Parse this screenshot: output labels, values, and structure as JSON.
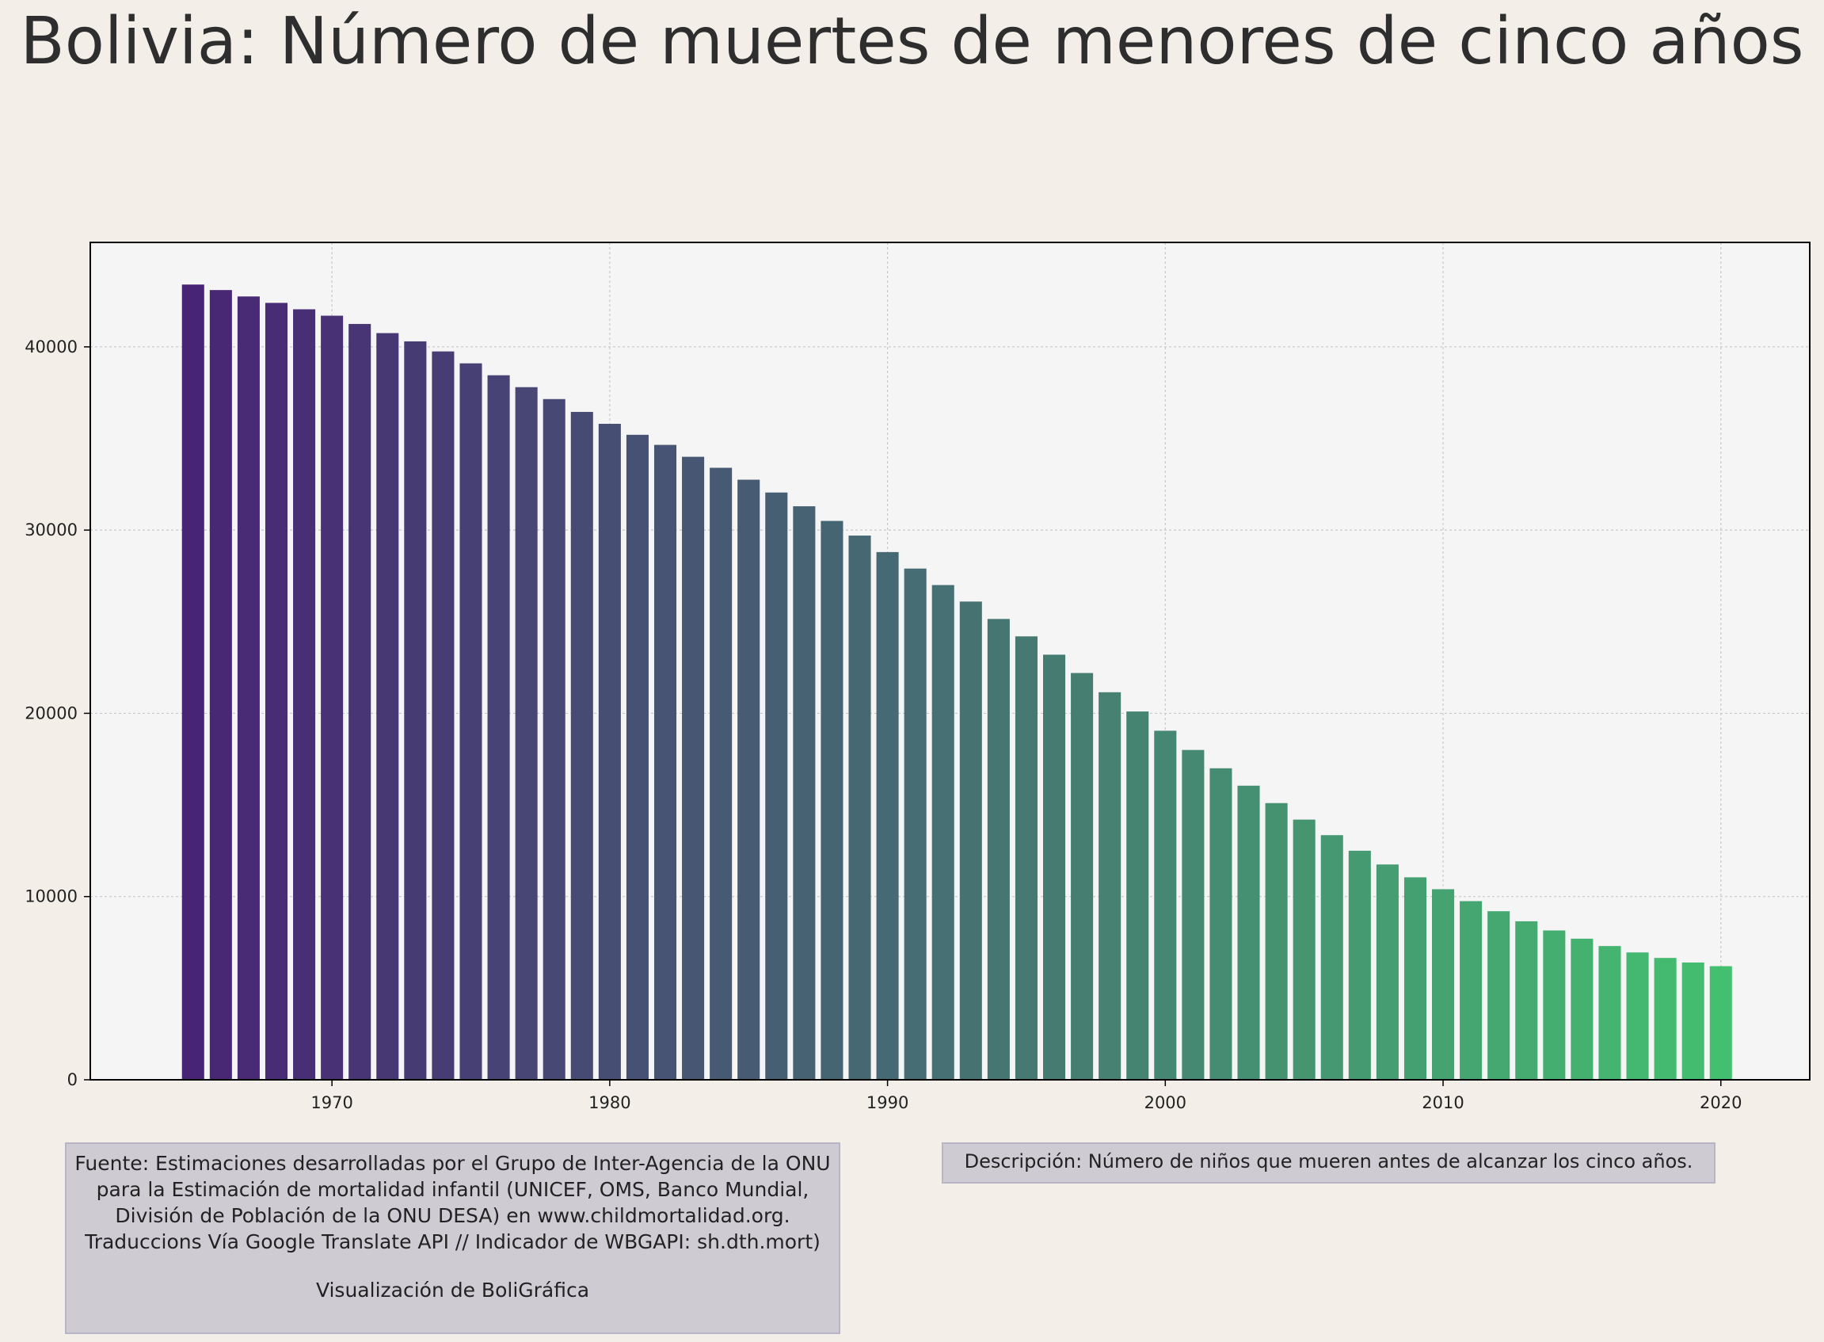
{
  "chart_data": {
    "type": "bar",
    "title": "Bolivia:  Número de muertes de menores de cinco años",
    "xlabel": "",
    "ylabel": "",
    "x": [
      1965,
      1966,
      1967,
      1968,
      1969,
      1970,
      1971,
      1972,
      1973,
      1974,
      1975,
      1976,
      1977,
      1978,
      1979,
      1980,
      1981,
      1982,
      1983,
      1984,
      1985,
      1986,
      1987,
      1988,
      1989,
      1990,
      1991,
      1992,
      1993,
      1994,
      1995,
      1996,
      1997,
      1998,
      1999,
      2000,
      2001,
      2002,
      2003,
      2004,
      2005,
      2006,
      2007,
      2008,
      2009,
      2010,
      2011,
      2012,
      2013,
      2014,
      2015,
      2016,
      2017,
      2018,
      2019,
      2020
    ],
    "values": [
      43400,
      43100,
      42750,
      42400,
      42050,
      41700,
      41250,
      40750,
      40300,
      39750,
      39100,
      38450,
      37800,
      37150,
      36450,
      35800,
      35200,
      34650,
      34000,
      33400,
      32750,
      32050,
      31300,
      30500,
      29700,
      28800,
      27900,
      27000,
      26100,
      25150,
      24200,
      23200,
      22200,
      21150,
      20100,
      19050,
      18000,
      17000,
      16050,
      15100,
      14200,
      13350,
      12500,
      11750,
      11050,
      10400,
      9750,
      9200,
      8650,
      8150,
      7700,
      7300,
      6950,
      6650,
      6400,
      6200
    ],
    "xlim": [
      1961.3,
      2023.2
    ],
    "ylim": [
      0,
      45700
    ],
    "xticks": [
      "1970",
      "1980",
      "1990",
      "2000",
      "2010",
      "2020"
    ],
    "yticks": [
      "0",
      "10000",
      "20000",
      "30000",
      "40000"
    ],
    "grid": true,
    "colormap": "viridis",
    "color_start": "#482475",
    "color_end": "#44bf70",
    "plot_background": "#f5f5f5"
  },
  "notes": {
    "source": "Fuente: Estimaciones desarrolladas por el Grupo de Inter-Agencia de la ONU para la Estimación de mortalidad infantil (UNICEF, OMS, Banco Mundial, División de Población de la ONU DESA) en www.childmortalidad.org. Traduccions Vía Google Translate API // Indicador de WBGAPI: sh.dth.mort)",
    "credit": "Visualización de BoliGráfica",
    "description": "Descripción: Número de niños que mueren antes de alcanzar los cinco años."
  }
}
